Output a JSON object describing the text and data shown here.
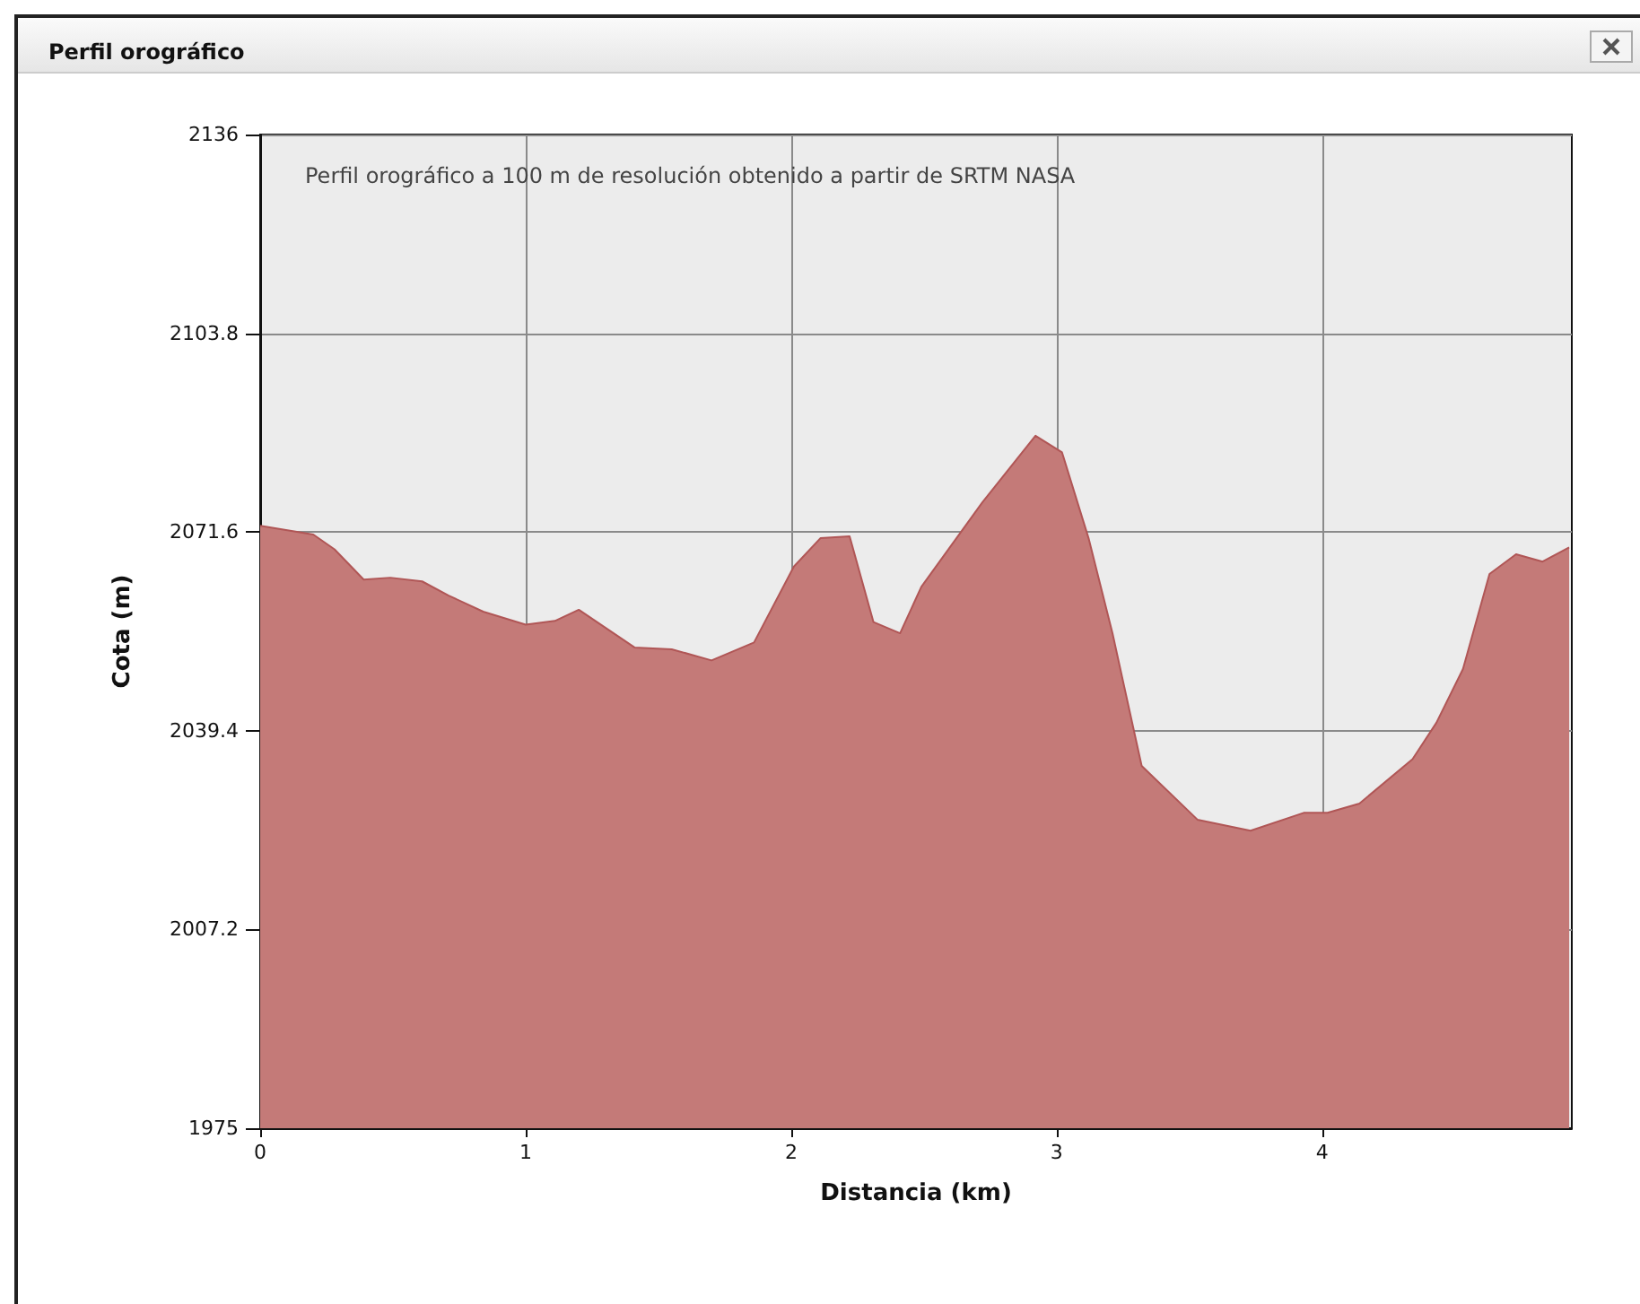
{
  "chart_data": {
    "type": "area",
    "title": "Perfil orográfico",
    "xlabel": "Distancia (km)",
    "ylabel": "Cota (m)",
    "annotations": [
      "Perfil orográfico a 100 m de resolución obtenido a partir de SRTM NASA"
    ],
    "x": [
      0,
      0.2,
      0.28,
      0.39,
      0.49,
      0.61,
      0.71,
      0.84,
      1.0,
      1.11,
      1.2,
      1.41,
      1.55,
      1.7,
      1.86,
      2.01,
      2.11,
      2.22,
      2.31,
      2.41,
      2.49,
      2.72,
      2.92,
      3.02,
      3.12,
      3.21,
      3.32,
      3.53,
      3.73,
      3.93,
      4.02,
      4.14,
      4.34,
      4.43,
      4.53,
      4.63,
      4.73,
      4.83,
      4.93
    ],
    "series": [
      {
        "color": "#c47a78",
        "values": [
          2072.6,
          2071.2,
          2068.8,
          2063.9,
          2064.2,
          2063.6,
          2061.3,
          2058.7,
          2056.6,
          2057.2,
          2059,
          2052.9,
          2052.6,
          2050.8,
          2053.7,
          2066,
          2070.6,
          2070.9,
          2057,
          2055.2,
          2062.7,
          2076.4,
          2087.2,
          2084.5,
          2070.6,
          2055.2,
          2033.7,
          2025,
          2023.2,
          2026.1,
          2026.1,
          2027.6,
          2034.8,
          2040.7,
          2049.4,
          2064.8,
          2068,
          2066.8,
          2069.1
        ]
      }
    ],
    "xlim": [
      0,
      4.94
    ],
    "xticks": [
      0,
      1,
      2,
      3,
      4
    ],
    "ylim": [
      1975,
      2136
    ],
    "yticks": [
      1975,
      2007.2,
      2039.4,
      2071.6,
      2103.8,
      2136
    ],
    "grid": true
  }
}
